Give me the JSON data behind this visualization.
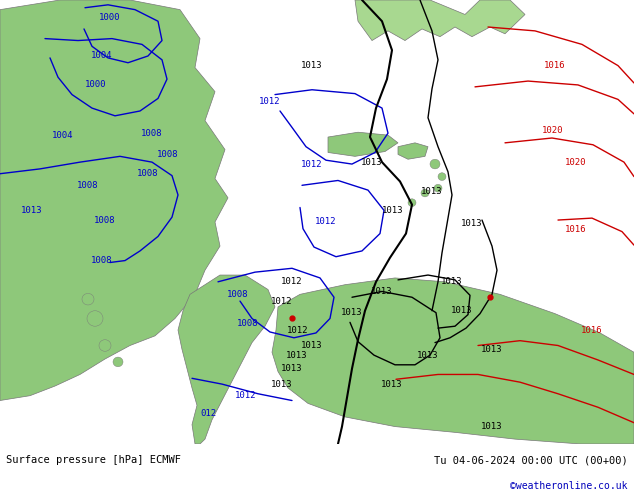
{
  "title_left": "Surface pressure [hPa] ECMWF",
  "title_right": "Tu 04-06-2024 00:00 UTC (00+00)",
  "credit": "©weatheronline.co.uk",
  "bg_color": "#c8dce8",
  "land_color": "#8ec87a",
  "land_color2": "#a8d890",
  "border_color": "#787878",
  "contour_blue": "#0000cc",
  "contour_black": "#000000",
  "contour_red": "#cc0000",
  "footer_bg": "#ffffff",
  "footer_color": "#000000",
  "credit_color": "#0000bb",
  "label_fontsize": 6.5,
  "footer_fontsize": 7.5,
  "credit_fontsize": 7.0
}
